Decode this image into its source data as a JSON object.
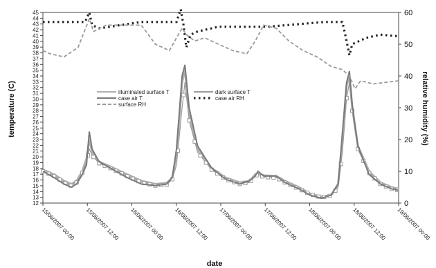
{
  "chart_data": {
    "type": "line",
    "xlabel": "date",
    "ylabel_left": "temperature (C)",
    "ylabel_right": "relative humidity (%)",
    "left_ticks": [
      "12",
      "13",
      "14",
      "15",
      "16",
      "17",
      "18",
      "19",
      "20",
      "21",
      "22",
      "23",
      "24",
      "25",
      "26",
      "27",
      "28",
      "29",
      "30",
      "31",
      "32",
      "33",
      "34",
      "35",
      "36",
      "37",
      "38",
      "39",
      "40",
      "41",
      "42",
      "43",
      "44",
      "45"
    ],
    "right_ylim": [
      0,
      60
    ],
    "right_ticks": [
      0,
      10,
      20,
      30,
      40,
      50,
      60
    ],
    "x_ticks": [
      "15/06/2007 00:00",
      "15/06/2007 12:00",
      "16/06/2007 00:00",
      "16/06/2007 12:00",
      "17/06/2007 00:00",
      "17/06/2007 12:00",
      "18/06/2007 00:00",
      "18/06/2007 12:00",
      "19/06/2007 00:00"
    ],
    "x": [
      0,
      1,
      2,
      3,
      4,
      5,
      6,
      7,
      8,
      9,
      10,
      11,
      12,
      13,
      14,
      15,
      16,
      17,
      18,
      19,
      20,
      21,
      22,
      23,
      24,
      25,
      26,
      27,
      28,
      29,
      30,
      31,
      32,
      33,
      34,
      35,
      36,
      37,
      38,
      39,
      40,
      41,
      42,
      43,
      44,
      45,
      46,
      47,
      48,
      49,
      50,
      51,
      52,
      53,
      54,
      55,
      56,
      57,
      58,
      59,
      60,
      61,
      62,
      63,
      64,
      65,
      66,
      67,
      68,
      69,
      70,
      71,
      72,
      73,
      74,
      75,
      76,
      77,
      78,
      79,
      80,
      81,
      82,
      83,
      84,
      85,
      86,
      87,
      88,
      89,
      90,
      91,
      92,
      93,
      94,
      95,
      96,
      97,
      98,
      99,
      100,
      101,
      102,
      103,
      104,
      105,
      106,
      107,
      108,
      109,
      110,
      111,
      112,
      113,
      114,
      115,
      116,
      117,
      118,
      119,
      120,
      121,
      122,
      123,
      124,
      125,
      126,
      127,
      128,
      129,
      130,
      131,
      132,
      133,
      134,
      135,
      136,
      137,
      138,
      139,
      140,
      141,
      142,
      143,
      144,
      145,
      146,
      147,
      148,
      149,
      150,
      151,
      152,
      153,
      154,
      155,
      156,
      157,
      158,
      159,
      160,
      161,
      162,
      163,
      164,
      165,
      166,
      167,
      168,
      169,
      170,
      171,
      172,
      173,
      174,
      175,
      176,
      177,
      178,
      179,
      180,
      181,
      182,
      183,
      184,
      185,
      186,
      187,
      188,
      189,
      190,
      191,
      192,
      193,
      194,
      195,
      196,
      197,
      198,
      199,
      200,
      201,
      202,
      203,
      204,
      205,
      206,
      207,
      208,
      209,
      210,
      211,
      212,
      213,
      214,
      215,
      216,
      217,
      218,
      219,
      220,
      221,
      222,
      223,
      224,
      225,
      226,
      227,
      228,
      229,
      230,
      231,
      232,
      233,
      234,
      235,
      236,
      237,
      238,
      239,
      240,
      241,
      242,
      243,
      244,
      245,
      246,
      247,
      248,
      249,
      250,
      251,
      252,
      253
    ],
    "legend": {
      "items": [
        "illuminated surface T",
        "dark surface T",
        "case air T",
        "case air RH",
        "surface RH"
      ],
      "placement": "center-left"
    },
    "series": [
      {
        "name": "illuminated surface T",
        "axis": "right",
        "color": "#b0b0b0",
        "style": "solid",
        "anchors": [
          [
            0,
            10.5
          ],
          [
            8,
            9
          ],
          [
            15,
            7
          ],
          [
            20,
            6
          ],
          [
            24,
            7
          ],
          [
            28,
            10
          ],
          [
            31,
            14
          ],
          [
            33,
            20
          ],
          [
            35,
            16
          ],
          [
            40,
            13
          ],
          [
            48,
            11.5
          ],
          [
            60,
            9
          ],
          [
            70,
            7
          ],
          [
            80,
            6
          ],
          [
            88,
            6.3
          ],
          [
            92,
            8
          ],
          [
            95,
            15
          ],
          [
            99,
            38
          ],
          [
            101,
            42
          ],
          [
            104,
            28
          ],
          [
            110,
            17
          ],
          [
            120,
            11
          ],
          [
            130,
            8
          ],
          [
            140,
            6.5
          ],
          [
            147,
            7
          ],
          [
            151,
            9
          ],
          [
            153,
            9.5
          ],
          [
            157,
            8.7
          ],
          [
            166,
            8.5
          ],
          [
            172,
            7
          ],
          [
            182,
            5
          ],
          [
            190,
            3
          ],
          [
            198,
            2
          ],
          [
            205,
            2.5
          ],
          [
            210,
            6
          ],
          [
            213,
            20
          ],
          [
            216,
            37
          ],
          [
            218,
            40
          ],
          [
            220,
            30
          ],
          [
            224,
            18
          ],
          [
            232,
            10
          ],
          [
            240,
            6.5
          ],
          [
            248,
            5
          ],
          [
            253,
            4.5
          ]
        ]
      },
      {
        "name": "dark surface T",
        "axis": "right",
        "color": "#9a9a9a",
        "style": "markers",
        "anchors": [
          [
            0,
            10
          ],
          [
            8,
            8.5
          ],
          [
            15,
            6.5
          ],
          [
            20,
            5.5
          ],
          [
            24,
            6.5
          ],
          [
            28,
            9.5
          ],
          [
            31,
            13
          ],
          [
            33,
            17
          ],
          [
            35,
            15
          ],
          [
            40,
            12.5
          ],
          [
            48,
            11
          ],
          [
            60,
            8.5
          ],
          [
            70,
            6.5
          ],
          [
            80,
            5.5
          ],
          [
            88,
            5.8
          ],
          [
            92,
            7.5
          ],
          [
            95,
            12
          ],
          [
            99,
            30
          ],
          [
            101,
            38
          ],
          [
            104,
            26
          ],
          [
            110,
            16
          ],
          [
            120,
            10.5
          ],
          [
            130,
            7.5
          ],
          [
            140,
            6
          ],
          [
            147,
            6.5
          ],
          [
            151,
            8.5
          ],
          [
            153,
            9
          ],
          [
            157,
            8.2
          ],
          [
            166,
            8
          ],
          [
            172,
            6.5
          ],
          [
            182,
            4.5
          ],
          [
            190,
            2.8
          ],
          [
            198,
            1.8
          ],
          [
            205,
            2.3
          ],
          [
            210,
            5
          ],
          [
            213,
            16
          ],
          [
            216,
            33
          ],
          [
            218,
            38
          ],
          [
            220,
            29
          ],
          [
            224,
            17
          ],
          [
            232,
            9.5
          ],
          [
            240,
            6
          ],
          [
            248,
            4.5
          ],
          [
            253,
            4
          ]
        ]
      },
      {
        "name": "case air T",
        "axis": "right",
        "color": "#7a7a7a",
        "style": "solid",
        "anchors": [
          [
            0,
            10
          ],
          [
            8,
            8
          ],
          [
            15,
            6
          ],
          [
            20,
            5
          ],
          [
            24,
            6
          ],
          [
            28,
            9
          ],
          [
            31,
            12
          ],
          [
            33,
            22.5
          ],
          [
            35,
            17
          ],
          [
            40,
            13
          ],
          [
            48,
            11
          ],
          [
            60,
            8
          ],
          [
            70,
            6
          ],
          [
            80,
            5.5
          ],
          [
            88,
            6
          ],
          [
            92,
            8
          ],
          [
            95,
            17
          ],
          [
            99,
            40
          ],
          [
            101,
            43.5
          ],
          [
            104,
            30
          ],
          [
            110,
            18
          ],
          [
            120,
            11
          ],
          [
            130,
            7.5
          ],
          [
            140,
            6
          ],
          [
            147,
            7
          ],
          [
            151,
            8.5
          ],
          [
            153,
            10
          ],
          [
            157,
            8.5
          ],
          [
            166,
            8.5
          ],
          [
            172,
            6.5
          ],
          [
            182,
            4.5
          ],
          [
            190,
            2.5
          ],
          [
            198,
            1.5
          ],
          [
            205,
            2.5
          ],
          [
            210,
            6
          ],
          [
            213,
            22
          ],
          [
            216,
            38
          ],
          [
            218,
            41.5
          ],
          [
            220,
            31
          ],
          [
            224,
            18
          ],
          [
            232,
            9
          ],
          [
            240,
            6
          ],
          [
            248,
            4.5
          ],
          [
            253,
            4
          ]
        ]
      },
      {
        "name": "case air RH",
        "axis": "right",
        "color": "#222222",
        "style": "dots",
        "anchors": [
          [
            0,
            57
          ],
          [
            30,
            57
          ],
          [
            33,
            60
          ],
          [
            35,
            56
          ],
          [
            40,
            55
          ],
          [
            55,
            56
          ],
          [
            70,
            57
          ],
          [
            95,
            57
          ],
          [
            98,
            61
          ],
          [
            100,
            56
          ],
          [
            102,
            49
          ],
          [
            105,
            53
          ],
          [
            110,
            54
          ],
          [
            125,
            55.5
          ],
          [
            160,
            55.5
          ],
          [
            200,
            57
          ],
          [
            213,
            57
          ],
          [
            216,
            51
          ],
          [
            218,
            46.5
          ],
          [
            220,
            50
          ],
          [
            230,
            52
          ],
          [
            240,
            53
          ],
          [
            253,
            52.5
          ]
        ]
      },
      {
        "name": "surface RH",
        "axis": "right",
        "color": "#9a9a9a",
        "style": "dashed",
        "anchors": [
          [
            0,
            48
          ],
          [
            5,
            47
          ],
          [
            15,
            46
          ],
          [
            25,
            49
          ],
          [
            33,
            58
          ],
          [
            36,
            54
          ],
          [
            45,
            56
          ],
          [
            55,
            56
          ],
          [
            70,
            56
          ],
          [
            80,
            50
          ],
          [
            90,
            48
          ],
          [
            95,
            52
          ],
          [
            99,
            55
          ],
          [
            102,
            53
          ],
          [
            108,
            51
          ],
          [
            115,
            52
          ],
          [
            125,
            50
          ],
          [
            135,
            48
          ],
          [
            145,
            47
          ],
          [
            151,
            51
          ],
          [
            157,
            56
          ],
          [
            166,
            55
          ],
          [
            175,
            51
          ],
          [
            185,
            48
          ],
          [
            195,
            46
          ],
          [
            205,
            43
          ],
          [
            213,
            42
          ],
          [
            218,
            40
          ],
          [
            222,
            36
          ],
          [
            226,
            38.5
          ],
          [
            235,
            37.5
          ],
          [
            253,
            38.5
          ]
        ]
      }
    ]
  }
}
